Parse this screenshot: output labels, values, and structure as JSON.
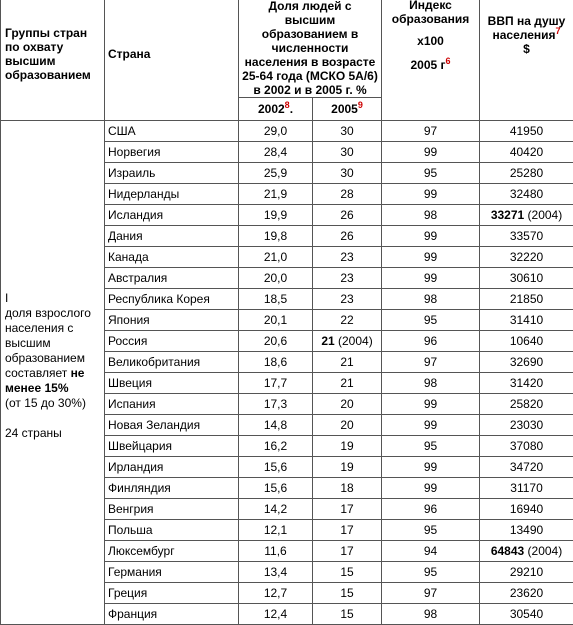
{
  "header": {
    "group_col": "Группы стран по охвату высшим образованием",
    "country_col": "Страна",
    "share_col": "Доля людей с высшим образованием в численности населения в возрасте 25-64 года (МСКО 5А/6) в 2002 и в 2005 г. %",
    "index_col_title": "Индекс образования",
    "index_col_mult": "х100",
    "index_col_year": "2005 г",
    "index_col_sup": "6",
    "gdp_col": "ВВП на душу населения",
    "gdp_col_sup": "7",
    "gdp_unit": "$",
    "year_2002": "2002",
    "year_2002_sup": "8",
    "year_2002_suffix": ".",
    "year_2005": "2005",
    "year_2005_sup": "9"
  },
  "group": {
    "numeral": "I",
    "desc": "доля взрослого населения с высшим образованием составляет",
    "bold": "не менее 15%",
    "range": "(от 15 до 30%)",
    "count": "24 страны"
  },
  "rows": [
    {
      "country": "США",
      "v2002": "29,0",
      "v2005": "30",
      "index": "97",
      "gdp": "41950"
    },
    {
      "country": "Норвегия",
      "v2002": "28,4",
      "v2005": "30",
      "index": "99",
      "gdp": "40420"
    },
    {
      "country": "Израиль",
      "v2002": "25,9",
      "v2005": "30",
      "index": "95",
      "gdp": "25280"
    },
    {
      "country": "Нидерланды",
      "v2002": "21,9",
      "v2005": "28",
      "index": "99",
      "gdp": "32480"
    },
    {
      "country": "Исландия",
      "v2002": "19,9",
      "v2005": "26",
      "index": "98",
      "gdp": "33271",
      "gdp_note": "(2004)"
    },
    {
      "country": "Дания",
      "v2002": "19,8",
      "v2005": "26",
      "index": "99",
      "gdp": "33570"
    },
    {
      "country": "Канада",
      "v2002": "21,0",
      "v2005": "23",
      "index": "99",
      "gdp": "32220"
    },
    {
      "country": "Австралия",
      "v2002": "20,0",
      "v2005": "23",
      "index": "99",
      "gdp": "30610"
    },
    {
      "country": "Республика Корея",
      "v2002": "18,5",
      "v2005": "23",
      "index": "98",
      "gdp": "21850"
    },
    {
      "country": "Япония",
      "v2002": "20,1",
      "v2005": "22",
      "index": "95",
      "gdp": "31410"
    },
    {
      "country": "Россия",
      "v2002": "20,6",
      "v2005": "21",
      "v2005_note": "(2004)",
      "index": "96",
      "gdp": "10640"
    },
    {
      "country": "Великобритания",
      "v2002": "18,6",
      "v2005": "21",
      "index": "97",
      "gdp": "32690"
    },
    {
      "country": "Швеция",
      "v2002": "17,7",
      "v2005": "21",
      "index": "98",
      "gdp": "31420"
    },
    {
      "country": "Испания",
      "v2002": "17,3",
      "v2005": "20",
      "index": "99",
      "gdp": "25820"
    },
    {
      "country": "Новая Зеландия",
      "v2002": "14,8",
      "v2005": "20",
      "index": "99",
      "gdp": "23030"
    },
    {
      "country": "Швейцария",
      "v2002": "16,2",
      "v2005": "19",
      "index": "95",
      "gdp": "37080"
    },
    {
      "country": "Ирландия",
      "v2002": "15,6",
      "v2005": "19",
      "index": "99",
      "gdp": "34720"
    },
    {
      "country": "Финляндия",
      "v2002": "15,6",
      "v2005": "18",
      "index": "99",
      "gdp": "31170"
    },
    {
      "country": "Венгрия",
      "v2002": "14,2",
      "v2005": "17",
      "index": "96",
      "gdp": "16940"
    },
    {
      "country": "Польша",
      "v2002": "12,1",
      "v2005": "17",
      "index": "95",
      "gdp": "13490"
    },
    {
      "country": "Люксембург",
      "v2002": "11,6",
      "v2005": "17",
      "index": "94",
      "gdp": "64843",
      "gdp_note": "(2004)"
    },
    {
      "country": "Германия",
      "v2002": "13,4",
      "v2005": "15",
      "index": "95",
      "gdp": "29210"
    },
    {
      "country": "Греция",
      "v2002": "12,7",
      "v2005": "15",
      "index": "97",
      "gdp": "23620"
    },
    {
      "country": "Франция",
      "v2002": "12,4",
      "v2005": "15",
      "index": "98",
      "gdp": "30540"
    }
  ]
}
